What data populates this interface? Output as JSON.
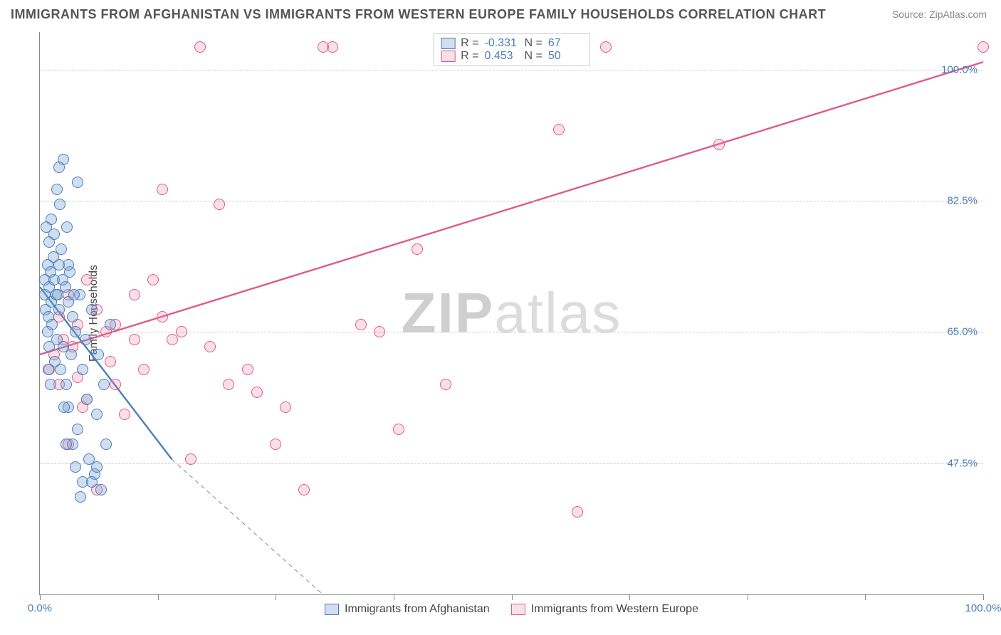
{
  "title": "IMMIGRANTS FROM AFGHANISTAN VS IMMIGRANTS FROM WESTERN EUROPE FAMILY HOUSEHOLDS CORRELATION CHART",
  "source": "Source: ZipAtlas.com",
  "ylabel": "Family Households",
  "watermark_bold": "ZIP",
  "watermark_rest": "atlas",
  "chart": {
    "type": "scatter",
    "xlim": [
      0,
      100
    ],
    "ylim": [
      30,
      105
    ],
    "xticks": [
      0,
      12.5,
      25,
      37.5,
      50,
      62.5,
      75,
      87.5,
      100
    ],
    "xtick_labels": {
      "0": "0.0%",
      "100": "100.0%"
    },
    "yticks": [
      47.5,
      65.0,
      82.5,
      100.0
    ],
    "ytick_labels": [
      "47.5%",
      "65.0%",
      "82.5%",
      "100.0%"
    ],
    "background_color": "#ffffff",
    "grid_color": "#cccccc",
    "axis_color": "#888888",
    "series": {
      "blue": {
        "label": "Immigrants from Afghanistan",
        "color": "#4a7ebb",
        "fill": "rgba(120,160,210,0.35)",
        "R": "-0.331",
        "N": "67",
        "trend": {
          "x1": 0,
          "y1": 71,
          "x2": 14,
          "y2": 48,
          "extend_dash_to_x": 30,
          "extend_dash_to_y": 30
        },
        "points": [
          [
            0.5,
            70
          ],
          [
            0.5,
            72
          ],
          [
            0.6,
            68
          ],
          [
            0.8,
            74
          ],
          [
            0.8,
            65
          ],
          [
            0.9,
            67
          ],
          [
            1.0,
            77
          ],
          [
            1.0,
            71
          ],
          [
            1.1,
            73
          ],
          [
            1.2,
            69
          ],
          [
            1.2,
            80
          ],
          [
            1.3,
            66
          ],
          [
            1.5,
            78
          ],
          [
            1.5,
            72
          ],
          [
            1.7,
            70
          ],
          [
            1.8,
            84
          ],
          [
            1.8,
            64
          ],
          [
            2.0,
            74
          ],
          [
            2.0,
            68
          ],
          [
            2.1,
            82
          ],
          [
            2.2,
            60
          ],
          [
            2.3,
            76
          ],
          [
            2.5,
            88
          ],
          [
            2.5,
            63
          ],
          [
            2.7,
            71
          ],
          [
            2.8,
            58
          ],
          [
            2.9,
            79
          ],
          [
            3.0,
            69
          ],
          [
            3.0,
            55
          ],
          [
            3.2,
            73
          ],
          [
            3.3,
            62
          ],
          [
            3.5,
            67
          ],
          [
            3.5,
            50
          ],
          [
            3.8,
            65
          ],
          [
            4.0,
            85
          ],
          [
            4.0,
            52
          ],
          [
            4.2,
            70
          ],
          [
            4.5,
            60
          ],
          [
            4.5,
            45
          ],
          [
            4.8,
            64
          ],
          [
            5.0,
            56
          ],
          [
            5.2,
            48
          ],
          [
            5.5,
            68
          ],
          [
            5.8,
            46
          ],
          [
            6.0,
            54
          ],
          [
            6.2,
            62
          ],
          [
            6.5,
            44
          ],
          [
            6.8,
            58
          ],
          [
            7.0,
            50
          ],
          [
            7.5,
            66
          ],
          [
            2.0,
            87
          ],
          [
            0.7,
            79
          ],
          [
            1.0,
            63
          ],
          [
            1.4,
            75
          ],
          [
            1.6,
            61
          ],
          [
            1.9,
            70
          ],
          [
            2.4,
            72
          ],
          [
            2.6,
            55
          ],
          [
            3.8,
            47
          ],
          [
            4.3,
            43
          ],
          [
            5.5,
            45
          ],
          [
            6.0,
            47
          ],
          [
            3.0,
            74
          ],
          [
            3.6,
            70
          ],
          [
            2.8,
            50
          ],
          [
            1.1,
            58
          ],
          [
            0.9,
            60
          ]
        ]
      },
      "pink": {
        "label": "Immigrants from Western Europe",
        "color": "#e05a8a",
        "fill": "rgba(230,130,160,0.25)",
        "R": "0.453",
        "N": "50",
        "trend": {
          "x1": 0,
          "y1": 62,
          "x2": 100,
          "y2": 101
        },
        "points": [
          [
            1,
            60
          ],
          [
            1.5,
            62
          ],
          [
            2,
            58
          ],
          [
            2,
            67
          ],
          [
            2.5,
            64
          ],
          [
            3,
            70
          ],
          [
            3.5,
            63
          ],
          [
            4,
            59
          ],
          [
            4,
            66
          ],
          [
            5,
            72
          ],
          [
            5,
            56
          ],
          [
            6,
            68
          ],
          [
            7,
            65
          ],
          [
            7.5,
            61
          ],
          [
            8,
            66
          ],
          [
            9,
            54
          ],
          [
            10,
            70
          ],
          [
            10,
            64
          ],
          [
            11,
            60
          ],
          [
            12,
            72
          ],
          [
            13,
            67
          ],
          [
            13,
            84
          ],
          [
            14,
            64
          ],
          [
            15,
            65
          ],
          [
            16,
            48
          ],
          [
            17,
            103
          ],
          [
            18,
            63
          ],
          [
            19,
            82
          ],
          [
            20,
            58
          ],
          [
            22,
            60
          ],
          [
            23,
            57
          ],
          [
            25,
            50
          ],
          [
            26,
            55
          ],
          [
            28,
            44
          ],
          [
            30,
            103
          ],
          [
            31,
            103
          ],
          [
            34,
            66
          ],
          [
            36,
            65
          ],
          [
            38,
            52
          ],
          [
            40,
            76
          ],
          [
            43,
            58
          ],
          [
            55,
            92
          ],
          [
            57,
            41
          ],
          [
            60,
            103
          ],
          [
            72,
            90
          ],
          [
            100,
            103
          ],
          [
            6,
            44
          ],
          [
            3,
            50
          ],
          [
            8,
            58
          ],
          [
            4.5,
            55
          ]
        ]
      }
    }
  },
  "legend_top": {
    "R_label": "R =",
    "N_label": "N ="
  }
}
